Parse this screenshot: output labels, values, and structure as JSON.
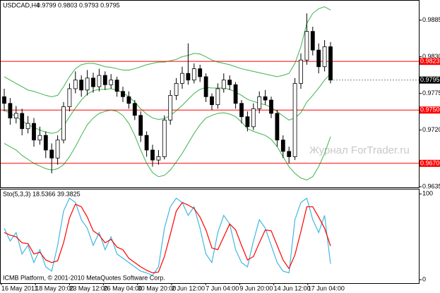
{
  "chart_data": [
    {
      "type": "candlestick",
      "title": "USDCAD,H4",
      "ohlc_label": "0.9799 0.9803 0.9793 0.9795",
      "open": [
        0.977,
        0.976,
        0.9738,
        0.9745,
        0.9722,
        0.973,
        0.9705,
        0.9712,
        0.969,
        0.9678,
        0.9705,
        0.9755,
        0.9782,
        0.9795,
        0.978,
        0.9798,
        0.9785,
        0.9802,
        0.9788,
        0.9795,
        0.9778,
        0.977,
        0.976,
        0.9742,
        0.9712,
        0.969,
        0.9675,
        0.968,
        0.9735,
        0.9772,
        0.979,
        0.9805,
        0.9795,
        0.9812,
        0.98,
        0.977,
        0.9758,
        0.9782,
        0.9795,
        0.9788,
        0.976,
        0.974,
        0.9725,
        0.9752,
        0.977,
        0.9765,
        0.9745,
        0.9705,
        0.9688,
        0.968,
        0.979,
        0.9825,
        0.9868,
        0.984,
        0.9815,
        0.9845
      ],
      "high": [
        0.9782,
        0.9768,
        0.9756,
        0.9752,
        0.9741,
        0.9738,
        0.9725,
        0.9718,
        0.97,
        0.9712,
        0.9762,
        0.979,
        0.9808,
        0.9802,
        0.981,
        0.9806,
        0.9812,
        0.9808,
        0.9804,
        0.98,
        0.9785,
        0.9778,
        0.9765,
        0.9748,
        0.9718,
        0.9698,
        0.969,
        0.9742,
        0.978,
        0.9798,
        0.9815,
        0.985,
        0.982,
        0.9818,
        0.9805,
        0.9775,
        0.979,
        0.9805,
        0.9802,
        0.9792,
        0.9765,
        0.9748,
        0.976,
        0.9778,
        0.978,
        0.977,
        0.975,
        0.9712,
        0.9695,
        0.9798,
        0.9835,
        0.9895,
        0.9875,
        0.985,
        0.9855,
        0.9852
      ],
      "low": [
        0.9748,
        0.9728,
        0.973,
        0.9712,
        0.9715,
        0.9695,
        0.9698,
        0.9678,
        0.9655,
        0.9668,
        0.97,
        0.9748,
        0.9775,
        0.977,
        0.9772,
        0.9776,
        0.9778,
        0.978,
        0.9782,
        0.977,
        0.9762,
        0.9752,
        0.9735,
        0.9702,
        0.968,
        0.9665,
        0.9668,
        0.9676,
        0.9728,
        0.9765,
        0.9782,
        0.9788,
        0.979,
        0.9792,
        0.9762,
        0.975,
        0.9752,
        0.9776,
        0.978,
        0.9752,
        0.973,
        0.9718,
        0.972,
        0.9745,
        0.9758,
        0.9738,
        0.9695,
        0.9678,
        0.967,
        0.9675,
        0.9782,
        0.9818,
        0.9832,
        0.9805,
        0.9808,
        0.979
      ],
      "close": [
        0.976,
        0.9738,
        0.9745,
        0.9722,
        0.973,
        0.9705,
        0.9712,
        0.969,
        0.9678,
        0.9705,
        0.9755,
        0.9782,
        0.9795,
        0.978,
        0.9798,
        0.9785,
        0.9802,
        0.9788,
        0.9795,
        0.9778,
        0.977,
        0.976,
        0.9742,
        0.9712,
        0.969,
        0.9675,
        0.968,
        0.9735,
        0.9772,
        0.979,
        0.9805,
        0.9795,
        0.9812,
        0.98,
        0.977,
        0.9758,
        0.9782,
        0.9795,
        0.9788,
        0.976,
        0.974,
        0.9725,
        0.9752,
        0.977,
        0.9765,
        0.9745,
        0.9705,
        0.9688,
        0.968,
        0.979,
        0.9825,
        0.9868,
        0.984,
        0.9815,
        0.9845,
        0.9795
      ],
      "up_color": "#ffffff",
      "down_color": "#000000",
      "bands": {
        "color": "#3cb44b",
        "upper": [
          0.98,
          0.9795,
          0.979,
          0.9785,
          0.978,
          0.9778,
          0.9775,
          0.9772,
          0.977,
          0.9772,
          0.9785,
          0.98,
          0.9812,
          0.9818,
          0.982,
          0.982,
          0.9818,
          0.9815,
          0.9814,
          0.9812,
          0.981,
          0.981,
          0.9812,
          0.9815,
          0.9818,
          0.982,
          0.9822,
          0.9822,
          0.9824,
          0.9826,
          0.983,
          0.9832,
          0.9835,
          0.9834,
          0.983,
          0.9825,
          0.9822,
          0.982,
          0.9818,
          0.9815,
          0.9812,
          0.981,
          0.9808,
          0.9806,
          0.9804,
          0.9802,
          0.98,
          0.9802,
          0.9805,
          0.982,
          0.9845,
          0.988,
          0.9895,
          0.9902,
          0.9905,
          0.99
        ],
        "middle": [
          0.975,
          0.9745,
          0.974,
          0.9734,
          0.9728,
          0.9724,
          0.972,
          0.9717,
          0.9715,
          0.9717,
          0.9726,
          0.974,
          0.9753,
          0.9765,
          0.9774,
          0.9779,
          0.9781,
          0.9781,
          0.9782,
          0.978,
          0.9776,
          0.977,
          0.9762,
          0.9752,
          0.9744,
          0.9738,
          0.9736,
          0.9737,
          0.9742,
          0.9749,
          0.9757,
          0.9766,
          0.9775,
          0.9781,
          0.9784,
          0.9783,
          0.9783,
          0.9783,
          0.9781,
          0.9777,
          0.9772,
          0.9766,
          0.9763,
          0.976,
          0.9758,
          0.9754,
          0.9748,
          0.9741,
          0.9735,
          0.9738,
          0.9746,
          0.9762,
          0.9772,
          0.9783,
          0.9795,
          0.9805
        ],
        "lower": [
          0.97,
          0.9695,
          0.969,
          0.9682,
          0.9676,
          0.967,
          0.9666,
          0.9662,
          0.966,
          0.9662,
          0.9668,
          0.968,
          0.9695,
          0.9712,
          0.9728,
          0.9738,
          0.9745,
          0.9748,
          0.975,
          0.9748,
          0.9742,
          0.973,
          0.9712,
          0.969,
          0.967,
          0.9656,
          0.965,
          0.9652,
          0.966,
          0.9672,
          0.9685,
          0.97,
          0.9715,
          0.9728,
          0.9738,
          0.9742,
          0.9745,
          0.9746,
          0.9744,
          0.974,
          0.9732,
          0.9722,
          0.9718,
          0.9715,
          0.9712,
          0.9706,
          0.9695,
          0.968,
          0.9665,
          0.9655,
          0.9648,
          0.9645,
          0.965,
          0.9665,
          0.9685,
          0.971
        ]
      },
      "levels": {
        "color": "#ff0000",
        "values": [
          0.9823,
          0.975,
          0.967
        ],
        "value_labels": [
          "0.9823",
          "0.9750",
          "0.9670"
        ]
      },
      "current": 0.9795,
      "ylim": [
        0.9634,
        0.9913
      ],
      "yticks": [
        0.9885,
        {
          "value": 0.983,
          "label": "0.9830"
        },
        0.9775,
        {
          "value": 0.972,
          "label": "0.9720"
        },
        0.9635
      ],
      "watermark": "Журнал ForTrader.ru"
    },
    {
      "type": "line",
      "title": "Sto(5,3,3) 18.5366 39.3825",
      "series": [
        {
          "color": "#40b8e0",
          "values": [
            60,
            45,
            55,
            30,
            40,
            20,
            35,
            15,
            10,
            40,
            80,
            95,
            90,
            70,
            60,
            40,
            55,
            35,
            50,
            30,
            25,
            20,
            15,
            10,
            8,
            5,
            15,
            60,
            85,
            95,
            90,
            75,
            85,
            60,
            30,
            20,
            55,
            75,
            65,
            35,
            20,
            15,
            45,
            70,
            60,
            40,
            20,
            10,
            8,
            70,
            90,
            95,
            70,
            55,
            75,
            18.5
          ]
        },
        {
          "color": "#ff0000",
          "values": [
            55,
            52,
            50,
            43,
            42,
            30,
            32,
            23,
            20,
            22,
            43,
            72,
            88,
            85,
            73,
            57,
            52,
            43,
            47,
            38,
            35,
            25,
            20,
            15,
            11,
            8,
            9,
            27,
            53,
            80,
            90,
            87,
            83,
            73,
            58,
            37,
            35,
            50,
            65,
            58,
            40,
            23,
            27,
            43,
            58,
            57,
            40,
            23,
            13,
            29,
            56,
            85,
            85,
            73,
            60,
            39.4
          ]
        }
      ],
      "ylim": [
        -4,
        106
      ],
      "yticks": [
        0,
        100
      ],
      "copyright": "ICMB Platform, © 2001-2010 MetaQuotes Software Corp.",
      "x_labels": [
        "16 May 2011",
        "18 May 20:00",
        "23 May 12:00",
        "26 May 04:00",
        "30 May 20:00",
        "2 Jun 12:00",
        "7 Jun 04:00",
        "9 Jun 20:00",
        "14 Jun 12:00",
        "17 Jun 04:00"
      ]
    }
  ]
}
